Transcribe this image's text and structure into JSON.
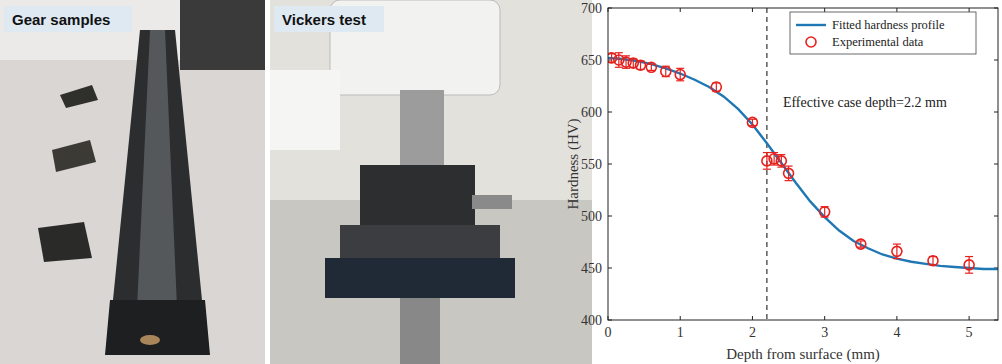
{
  "photos": [
    {
      "label": "Gear samples"
    },
    {
      "label": "Vickers test"
    }
  ],
  "chart_data": {
    "type": "scatter",
    "x_label": "Depth from surface (mm)",
    "y_label": "Hardness (HV)",
    "xlim": [
      0,
      5.4
    ],
    "xticks": [
      0,
      1,
      2,
      3,
      4,
      5
    ],
    "ylim": [
      400,
      700
    ],
    "yticks": [
      400,
      450,
      500,
      550,
      600,
      650,
      700
    ],
    "legend": "upper right",
    "grid": false,
    "series": [
      {
        "name": "Fitted hardness profile",
        "type": "line",
        "color": "#1f77b4",
        "line_style": "solid",
        "x": [
          0,
          0.2,
          0.4,
          0.6,
          0.8,
          1.0,
          1.2,
          1.4,
          1.6,
          1.8,
          2.0,
          2.2,
          2.4,
          2.6,
          2.8,
          3.0,
          3.2,
          3.4,
          3.6,
          3.8,
          4.0,
          4.2,
          4.4,
          4.6,
          4.8,
          5.0,
          5.2,
          5.4
        ],
        "values": [
          652,
          651,
          649,
          646,
          642,
          637,
          631,
          624,
          615,
          603,
          588,
          570,
          551,
          532,
          514,
          499,
          486,
          476,
          469,
          463,
          459,
          456,
          454,
          452,
          451,
          450,
          449,
          449
        ]
      },
      {
        "name": "Experimental data",
        "type": "scatter",
        "color": "#e8201d",
        "marker": "circle",
        "x": [
          0.05,
          0.15,
          0.25,
          0.35,
          0.45,
          0.6,
          0.8,
          1.0,
          1.5,
          2.0,
          2.2,
          2.3,
          2.4,
          2.5,
          3.0,
          3.5,
          4.0,
          4.5,
          5.0
        ],
        "values": [
          652,
          650,
          648,
          647,
          645,
          643,
          639,
          636,
          624,
          590,
          553,
          555,
          553,
          541,
          504,
          473,
          466,
          457,
          453
        ],
        "errors": [
          4,
          7,
          6,
          4,
          4,
          3,
          5,
          6,
          4,
          3,
          8,
          6,
          6,
          7,
          5,
          3,
          7,
          4,
          8
        ]
      }
    ],
    "annotations": [
      {
        "text": "Effective case depth=2.2 mm",
        "x": 2.2,
        "line_style": "dashed"
      }
    ]
  }
}
